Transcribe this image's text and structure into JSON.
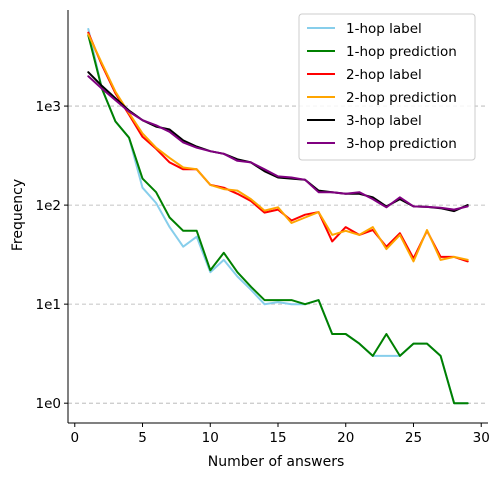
{
  "chart_data": {
    "type": "line",
    "xlabel": "Number of answers",
    "ylabel": "Frequency",
    "xlim": [
      -0.5,
      30.5
    ],
    "ylim_log10": [
      -0.2,
      3.97
    ],
    "y_scale": "log",
    "x_ticks": [
      0,
      5,
      10,
      15,
      20,
      25,
      30
    ],
    "x_tick_labels": [
      "0",
      "5",
      "10",
      "15",
      "20",
      "25",
      "30"
    ],
    "y_ticks": [
      1,
      10,
      100,
      1000
    ],
    "y_tick_labels": [
      "1e0",
      "1e1",
      "1e2",
      "1e3"
    ],
    "grid": "horizontal dashed at y ticks",
    "legend_position": "top-right",
    "x": [
      1,
      2,
      3,
      4,
      5,
      6,
      7,
      8,
      9,
      10,
      11,
      12,
      13,
      14,
      15,
      16,
      17,
      18,
      19,
      20,
      21,
      22,
      23,
      24,
      25,
      26,
      27,
      28,
      29
    ],
    "series": [
      {
        "name": "1-hop label",
        "color": "#87CEEB",
        "values": [
          6000,
          1500,
          700,
          480,
          150,
          105,
          60,
          38,
          48,
          21,
          28,
          19,
          14,
          10,
          10.5,
          10,
          10,
          11,
          5,
          5,
          4,
          3,
          3,
          3,
          4,
          4,
          3,
          1,
          1
        ]
      },
      {
        "name": "1-hop prediction",
        "color": "#008000",
        "values": [
          5200,
          1500,
          700,
          480,
          185,
          135,
          75,
          55,
          55,
          22,
          33,
          21,
          15,
          11,
          11,
          11,
          10,
          11,
          5,
          5,
          4,
          3,
          5,
          3,
          4,
          4,
          3,
          1,
          1
        ]
      },
      {
        "name": "2-hop label",
        "color": "#FF0000",
        "values": [
          5500,
          2600,
          1350,
          820,
          490,
          370,
          270,
          230,
          230,
          160,
          150,
          130,
          110,
          84,
          90,
          70,
          80,
          85,
          43,
          60,
          50,
          56,
          38,
          52,
          29,
          55,
          30,
          30,
          27
        ]
      },
      {
        "name": "2-hop prediction",
        "color": "#FFA500",
        "values": [
          5300,
          2700,
          1400,
          850,
          530,
          380,
          300,
          240,
          230,
          160,
          145,
          140,
          115,
          88,
          95,
          66,
          75,
          85,
          50,
          55,
          50,
          60,
          36,
          50,
          27,
          56,
          28,
          30,
          28
        ]
      },
      {
        "name": "3-hop label",
        "color": "#000000",
        "values": [
          2200,
          1600,
          1200,
          900,
          720,
          620,
          580,
          450,
          390,
          350,
          330,
          290,
          270,
          220,
          190,
          185,
          180,
          140,
          135,
          130,
          130,
          120,
          97,
          115,
          97,
          96,
          93,
          87,
          100
        ]
      },
      {
        "name": "3-hop prediction",
        "color": "#800080",
        "values": [
          2000,
          1500,
          1150,
          880,
          720,
          640,
          550,
          430,
          380,
          350,
          330,
          280,
          270,
          230,
          195,
          190,
          180,
          135,
          135,
          130,
          135,
          115,
          95,
          120,
          97,
          96,
          94,
          90,
          97
        ]
      }
    ]
  }
}
